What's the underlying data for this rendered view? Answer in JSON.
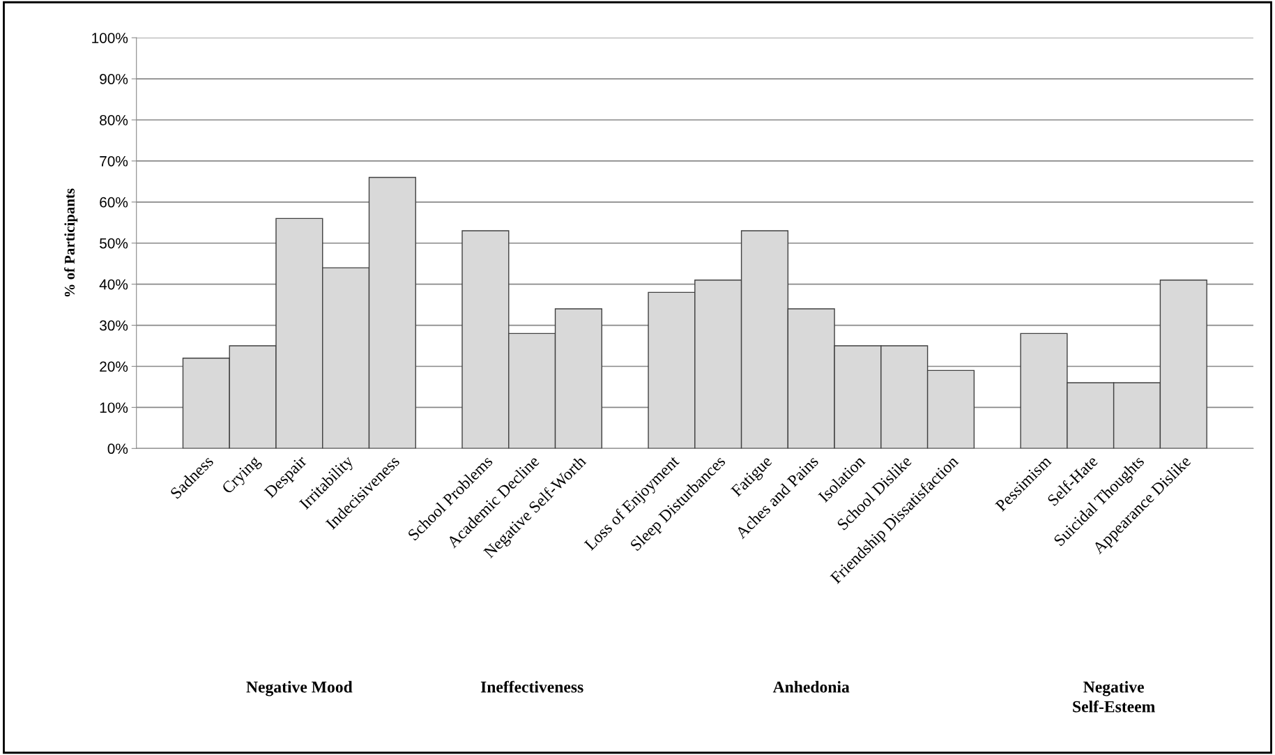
{
  "chart_data": {
    "type": "bar",
    "ylabel": "% of Participants",
    "categories": [
      "Sadness",
      "Crying",
      "Despair",
      "Irritability",
      "Indecisiveness",
      null,
      "School Problems",
      "Academic Decline",
      "Negative Self-Worth",
      null,
      "Loss of Enjoyment",
      "Sleep Disturbances",
      "Fatigue",
      "Aches and Pains",
      "Isolation",
      "School Dislike",
      "Friendship Dissatisfaction",
      null,
      "Pessimism",
      "Self-Hate",
      "Suicidal Thoughts",
      "Appearance Dislike"
    ],
    "values": [
      22,
      25,
      56,
      44,
      66,
      null,
      53,
      28,
      34,
      null,
      38,
      41,
      53,
      34,
      25,
      25,
      19,
      null,
      28,
      16,
      16,
      41
    ],
    "color": "#d9d9d9",
    "ylim": [
      0,
      100
    ],
    "yticks": [
      {
        "value": 0,
        "label": "0%"
      },
      {
        "value": 10,
        "label": "10%"
      },
      {
        "value": 20,
        "label": "20%"
      },
      {
        "value": 30,
        "label": "30%"
      },
      {
        "value": 40,
        "label": "40%"
      },
      {
        "value": 50,
        "label": "50%"
      },
      {
        "value": 60,
        "label": "60%"
      },
      {
        "value": 70,
        "label": "70%"
      },
      {
        "value": 80,
        "label": "80%"
      },
      {
        "value": 90,
        "label": "90%"
      },
      {
        "value": 100,
        "label": "100%"
      }
    ],
    "grid": "y",
    "annotations": [
      "Negative Mood",
      "Ineffectiveness",
      "Anhedonia",
      "Negative\nSelf-Esteem"
    ]
  }
}
